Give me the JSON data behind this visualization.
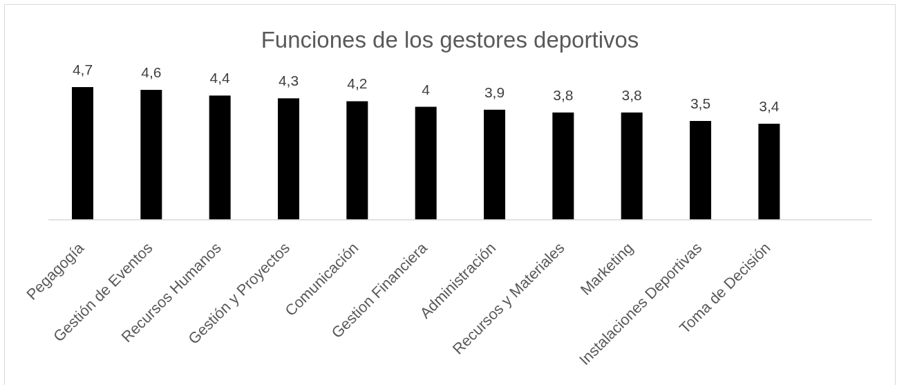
{
  "chart_data": {
    "type": "bar",
    "title": "Funciones de los gestores deportivos",
    "categories": [
      "Pegagogía",
      "Gestión de Eventos",
      "Recursos Humanos",
      "Gestión y Proyectos",
      "Comunicación",
      "Gestion Financiera",
      "Administración",
      "Recursos y Materiales",
      "Marketing",
      "Instalaciones Deportivas",
      "Toma de Decisión",
      null
    ],
    "values": [
      4.7,
      4.6,
      4.4,
      4.3,
      4.2,
      4,
      3.9,
      3.8,
      3.8,
      3.5,
      3.4,
      null
    ],
    "value_labels": [
      "4,7",
      "4,6",
      "4,4",
      "4,3",
      "4,2",
      "4",
      "3,9",
      "3,8",
      "3,8",
      "3,5",
      "3,4",
      null
    ],
    "color": "#000000",
    "tick_labels": "x"
  }
}
